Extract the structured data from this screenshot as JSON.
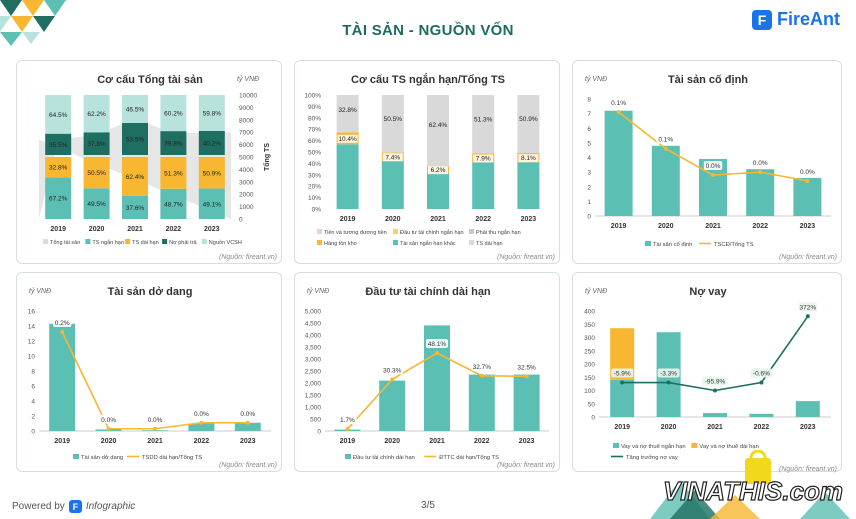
{
  "page": {
    "title": "TÀI SẢN - NGUỒN VỐN",
    "brand": "FireAnt",
    "brand_letter": "F",
    "footer_powered": "Powered by",
    "footer_infographic": "Infographic",
    "page_number": "3/5",
    "watermark": "VINATHIS.com"
  },
  "colors": {
    "teal": "#5cbfb3",
    "orange": "#f7b731",
    "dark_green": "#1e6f62",
    "light_teal": "#b8e3dc",
    "gray": "#d9d9d9",
    "light_gray": "#e8e8e8",
    "title_green": "#1d6b62",
    "brand_blue": "#1a73e8"
  },
  "chart_data": [
    {
      "id": "c1",
      "type": "bar",
      "title": "Cơ cấu Tổng tài sản",
      "unit": "tỷ VNĐ",
      "y2label": "Tổng TS",
      "source": "(Nguồn: fireant.vn)",
      "categories": [
        "2019",
        "2020",
        "2021",
        "2022",
        "2023"
      ],
      "y2lim": [
        0,
        10000
      ],
      "y2ticks": [
        0,
        1000,
        2000,
        3000,
        4000,
        5000,
        6000,
        7000,
        8000,
        9000,
        10000
      ],
      "series": [
        {
          "name": "TS ngắn hạn",
          "color": "#5cbfb3",
          "values": [
            67.2,
            49.5,
            37.6,
            48.7,
            49.1
          ]
        },
        {
          "name": "TS dài hạn",
          "color": "#f7b731",
          "values": [
            32.8,
            50.5,
            62.4,
            51.3,
            50.9
          ]
        },
        {
          "name": "Nợ phải trả",
          "color": "#1e6f62",
          "values": [
            35.5,
            37.8,
            53.5,
            39.8,
            40.2
          ]
        },
        {
          "name": "Nguồn VCSH",
          "color": "#b8e3dc",
          "values": [
            64.5,
            62.2,
            46.5,
            60.2,
            59.8
          ]
        }
      ],
      "area": {
        "name": "Tổng tài sản",
        "color": "#dcdcdc",
        "values": [
          6400,
          6800,
          8100,
          6900,
          7000
        ]
      }
    },
    {
      "id": "c2",
      "type": "bar",
      "title": "Cơ cấu TS ngắn hạn/Tổng TS",
      "source": "(Nguồn: fireant.vn)",
      "categories": [
        "2019",
        "2020",
        "2021",
        "2022",
        "2023"
      ],
      "yticks": [
        "0%",
        "10%",
        "20%",
        "30%",
        "40%",
        "50%",
        "60%",
        "70%",
        "80%",
        "90%",
        "100%"
      ],
      "series": [
        {
          "name": "Tài sản ngắn hạn khác",
          "color": "#5cbfb3",
          "values": [
            56.8,
            42.1,
            31.4,
            40.8,
            41.0
          ]
        },
        {
          "name": "Hàng tồn kho",
          "color": "#f7b731",
          "values": [
            10.4,
            7.4,
            6.2,
            7.9,
            8.1
          ]
        },
        {
          "name": "TS dài hạn",
          "color": "#d9d9d9",
          "values": [
            32.8,
            50.5,
            62.4,
            51.3,
            50.9
          ]
        }
      ],
      "labels": [
        {
          "series": 1,
          "values": [
            "10.4%",
            "7.4%",
            "6.2%",
            "7.9%",
            "8.1%"
          ]
        },
        {
          "series": 2,
          "values": [
            "32.8%",
            "50.5%",
            "62.4%",
            "51.3%",
            "50.9%"
          ]
        }
      ],
      "legend": [
        "Tiền và tương đương tiền",
        "Đầu tư tài chính ngắn hạn",
        "Phải thu ngắn hạn",
        "Hàng tồn kho",
        "Tài sản ngắn hạn khác",
        "TS dài hạn"
      ],
      "legend_colors": [
        "#f4cccc",
        "#f7d070",
        "#c8c8c8",
        "#f7b731",
        "#5cbfb3",
        "#d9d9d9"
      ]
    },
    {
      "id": "c3",
      "type": "bar",
      "title": "Tài sản cố định",
      "unit": "tỷ VNĐ",
      "source": "(Nguồn: fireant.vn)",
      "categories": [
        "2019",
        "2020",
        "2021",
        "2022",
        "2023"
      ],
      "ylim": [
        0,
        8
      ],
      "yticks": [
        0,
        1,
        2,
        3,
        4,
        5,
        6,
        7,
        8
      ],
      "series": [
        {
          "name": "Tài sản cố định",
          "color": "#5cbfb3",
          "values": [
            7.2,
            4.8,
            3.9,
            3.2,
            2.6
          ]
        }
      ],
      "line": {
        "name": "TSCĐ/Tổng TS",
        "color": "#f7b731",
        "values": [
          7.1,
          4.6,
          2.8,
          3.0,
          2.4
        ],
        "labels": [
          "0.1%",
          "0.1%",
          "0.0%",
          "0.0%",
          "0.0%"
        ]
      }
    },
    {
      "id": "c4",
      "type": "bar",
      "title": "Tài sản dở dang",
      "unit": "tỷ VNĐ",
      "source": "(Nguồn: fireant.vn)",
      "categories": [
        "2019",
        "2020",
        "2021",
        "2022",
        "2023"
      ],
      "ylim": [
        0,
        16
      ],
      "yticks": [
        0,
        2,
        4,
        6,
        8,
        10,
        12,
        14,
        16
      ],
      "series": [
        {
          "name": "Tài sản dở dang",
          "color": "#5cbfb3",
          "values": [
            14.3,
            0.2,
            0.1,
            1.0,
            1.1
          ]
        }
      ],
      "line": {
        "name": "TSDD dài hạn/Tổng TS",
        "color": "#f7b731",
        "values": [
          13.2,
          0.3,
          0.3,
          1.1,
          1.1
        ],
        "labels": [
          "0.2%",
          "0.0%",
          "0.0%",
          "0.0%",
          "0.0%"
        ]
      }
    },
    {
      "id": "c5",
      "type": "bar",
      "title": "Đầu tư tài chính dài hạn",
      "unit": "tỷ VNĐ",
      "source": "(Nguồn: fireant.vn)",
      "categories": [
        "2019",
        "2020",
        "2021",
        "2022",
        "2023"
      ],
      "ylim": [
        0,
        5000
      ],
      "yticks": [
        0,
        500,
        1000,
        1500,
        2000,
        2500,
        3000,
        3500,
        4000,
        4500,
        5000
      ],
      "ytick_labels": [
        "0",
        "500",
        "1,000",
        "1,500",
        "2,000",
        "2,500",
        "3,000",
        "3,500",
        "4,000",
        "4,500",
        "5,000"
      ],
      "series": [
        {
          "name": "Đầu tư tài chính dài hạn",
          "color": "#5cbfb3",
          "values": [
            60,
            2100,
            4400,
            2350,
            2350
          ]
        }
      ],
      "line": {
        "name": "ĐTTC dài hạn/Tổng TS",
        "color": "#f7b731",
        "values": [
          80,
          2150,
          3250,
          2300,
          2280
        ],
        "labels": [
          "1.7%",
          "30.3%",
          "48.1%",
          "32.7%",
          "32.5%"
        ]
      }
    },
    {
      "id": "c6",
      "type": "bar",
      "title": "Nợ vay",
      "unit": "tỷ VNĐ",
      "source": "(Nguồn: fireant.vn)",
      "categories": [
        "2019",
        "2020",
        "2021",
        "2022",
        "2023"
      ],
      "ylim": [
        0,
        400
      ],
      "yticks": [
        0,
        50,
        100,
        150,
        200,
        250,
        300,
        350,
        400
      ],
      "series": [
        {
          "name": "Vay và nợ thuê ngắn hạn",
          "color": "#5cbfb3",
          "values": [
            140,
            320,
            15,
            12,
            60
          ]
        },
        {
          "name": "Vay và nợ thuê dài hạn",
          "color": "#f7b731",
          "values": [
            195,
            0,
            0,
            0,
            0
          ]
        }
      ],
      "line": {
        "name": "Tăng trưởng nợ vay",
        "color": "#1e6f62",
        "values": [
          130,
          130,
          100,
          130,
          380
        ],
        "labels": [
          "-5.9%",
          "-3.3%",
          "-95.9%",
          "-0.6%",
          "372%"
        ]
      }
    }
  ]
}
